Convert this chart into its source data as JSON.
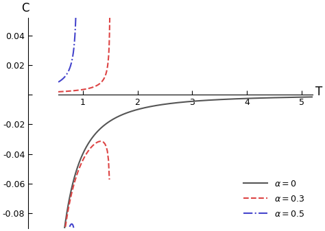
{
  "title": "",
  "xlabel": "T",
  "ylabel": "C",
  "xlim": [
    0.55,
    5.2
  ],
  "ylim": [
    -0.09,
    0.052
  ],
  "xticks": [
    1,
    2,
    3,
    4,
    5
  ],
  "yticks": [
    -0.08,
    -0.06,
    -0.04,
    -0.02,
    0.0,
    0.02,
    0.04
  ],
  "series": [
    {
      "alpha": 0.0,
      "color": "#555555",
      "linestyle": "solid",
      "linewidth": 1.5,
      "label": "\\alpha=0"
    },
    {
      "alpha": 0.3,
      "color": "#dd4444",
      "linestyle": "dashed",
      "linewidth": 1.5,
      "label": "\\alpha=0.3"
    },
    {
      "alpha": 0.5,
      "color": "#4444cc",
      "linestyle": "dashdot",
      "linewidth": 1.5,
      "label": "\\alpha=0.5"
    }
  ],
  "legend_loc": "lower right",
  "background_color": "#ffffff"
}
